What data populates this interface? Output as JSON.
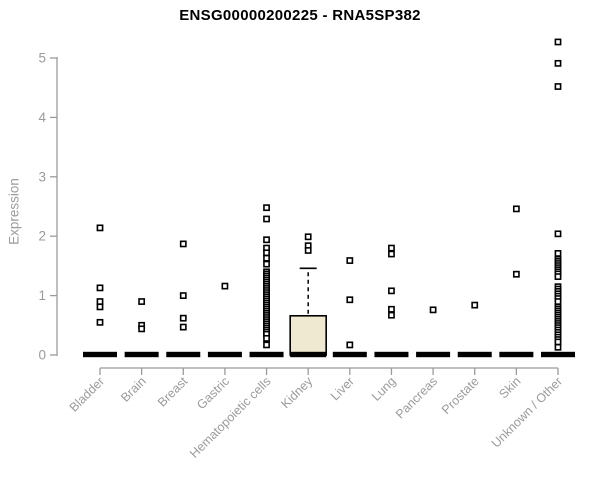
{
  "chart_data": {
    "type": "boxplot",
    "title": "ENSG00000200225 - RNA5SP382",
    "ylabel": "Expression",
    "xlabel": "",
    "ylim": [
      0,
      5.4
    ],
    "yticks": [
      0,
      1,
      2,
      3,
      4,
      5
    ],
    "grid": false,
    "legend": "none",
    "categories": [
      "Bladder",
      "Brain",
      "Breast",
      "Gastric",
      "Hematopoietic cells",
      "Kidney",
      "Liver",
      "Lung",
      "Pancreas",
      "Prostate",
      "Skin",
      "Unknown / Other"
    ],
    "series": [
      {
        "category": "Bladder",
        "box": {
          "q1": 0,
          "median": 0,
          "q3": 0,
          "whisker_high": 0
        },
        "outliers": [
          2.14,
          1.13,
          0.9,
          0.81,
          0.55
        ]
      },
      {
        "category": "Brain",
        "box": {
          "q1": 0,
          "median": 0,
          "q3": 0,
          "whisker_high": 0
        },
        "outliers": [
          0.9,
          0.5,
          0.44
        ]
      },
      {
        "category": "Breast",
        "box": {
          "q1": 0,
          "median": 0,
          "q3": 0,
          "whisker_high": 0
        },
        "outliers": [
          1.87,
          1.0,
          0.62,
          0.47
        ]
      },
      {
        "category": "Gastric",
        "box": {
          "q1": 0,
          "median": 0,
          "q3": 0,
          "whisker_high": 0
        },
        "outliers": [
          1.16
        ]
      },
      {
        "category": "Hematopoietic cells",
        "box": {
          "q1": 0,
          "median": 0,
          "q3": 0,
          "whisker_high": 0
        },
        "outliers": [
          2.48,
          2.29,
          1.94,
          1.8,
          1.72,
          1.63,
          1.53,
          1.4,
          1.365,
          1.33,
          1.295,
          1.26,
          1.225,
          1.19,
          1.155,
          1.12,
          1.085,
          1.05,
          1.015,
          0.98,
          0.945,
          0.91,
          0.875,
          0.84,
          0.805,
          0.77,
          0.735,
          0.7,
          0.665,
          0.63,
          0.595,
          0.56,
          0.525,
          0.49,
          0.455,
          0.42,
          0.385,
          0.35,
          0.28,
          0.17
        ]
      },
      {
        "category": "Kidney",
        "box": {
          "q1": 0,
          "median": 0,
          "q3": 0.66,
          "whisker_high": 1.46,
          "filled": true
        },
        "outliers": [
          1.99,
          1.84,
          1.76
        ]
      },
      {
        "category": "Liver",
        "box": {
          "q1": 0,
          "median": 0,
          "q3": 0,
          "whisker_high": 0
        },
        "outliers": [
          1.59,
          0.93,
          0.17
        ]
      },
      {
        "category": "Lung",
        "box": {
          "q1": 0,
          "median": 0,
          "q3": 0,
          "whisker_high": 0
        },
        "outliers": [
          1.8,
          1.7,
          1.08,
          0.77,
          0.67
        ]
      },
      {
        "category": "Pancreas",
        "box": {
          "q1": 0,
          "median": 0,
          "q3": 0,
          "whisker_high": 0
        },
        "outliers": [
          0.76
        ]
      },
      {
        "category": "Prostate",
        "box": {
          "q1": 0,
          "median": 0,
          "q3": 0,
          "whisker_high": 0
        },
        "outliers": [
          0.84
        ]
      },
      {
        "category": "Skin",
        "box": {
          "q1": 0,
          "median": 0,
          "q3": 0,
          "whisker_high": 0
        },
        "outliers": [
          2.46,
          1.36
        ]
      },
      {
        "category": "Unknown / Other",
        "box": {
          "q1": 0,
          "median": 0,
          "q3": 0,
          "whisker_high": 0
        },
        "outliers": [
          5.27,
          4.91,
          4.52,
          2.04,
          1.71,
          1.61,
          1.575,
          1.54,
          1.505,
          1.47,
          1.435,
          1.4,
          1.365,
          1.32,
          1.15,
          1.11,
          1.07,
          1.03,
          0.99,
          0.95,
          0.9,
          0.81,
          0.775,
          0.74,
          0.705,
          0.67,
          0.635,
          0.6,
          0.565,
          0.53,
          0.495,
          0.46,
          0.42,
          0.38,
          0.34,
          0.3,
          0.26,
          0.22,
          0.13
        ]
      }
    ],
    "colors": {
      "title": "#000000",
      "axis": "#9b9b9b",
      "tick_label": "#9b9b9b",
      "point_stroke": "#000000",
      "point_fill": "#ffffff",
      "median_bar": "#000000",
      "box_fill": "#f0e9d2",
      "box_stroke": "#000000",
      "background": "#ffffff"
    }
  }
}
